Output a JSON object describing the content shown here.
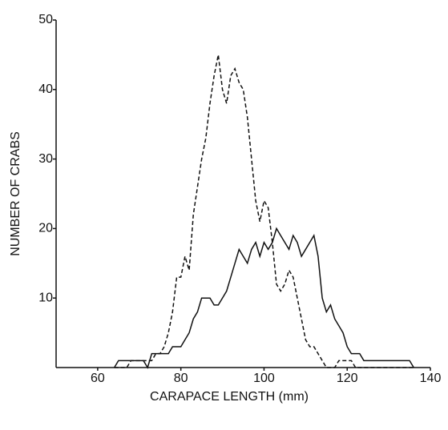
{
  "chart_data": {
    "type": "line",
    "xlabel": "CARAPACE LENGTH (mm)",
    "ylabel": "NUMBER OF CRABS",
    "x": [
      64,
      65,
      66,
      67,
      68,
      69,
      70,
      71,
      72,
      73,
      74,
      75,
      76,
      77,
      78,
      79,
      80,
      81,
      82,
      83,
      84,
      85,
      86,
      87,
      88,
      89,
      90,
      91,
      92,
      93,
      94,
      95,
      96,
      97,
      98,
      99,
      100,
      101,
      102,
      103,
      104,
      105,
      106,
      107,
      108,
      109,
      110,
      111,
      112,
      113,
      114,
      115,
      116,
      117,
      118,
      119,
      120,
      121,
      122,
      123,
      124,
      125,
      126,
      127,
      128,
      129,
      130,
      131,
      132,
      133,
      134,
      135,
      136
    ],
    "series": [
      {
        "color": "#111111",
        "style": "solid",
        "values": [
          0,
          1,
          1,
          1,
          1,
          1,
          1,
          1,
          0,
          2,
          2,
          2,
          2,
          2,
          3,
          3,
          3,
          4,
          5,
          7,
          8,
          10,
          10,
          10,
          9,
          9,
          10,
          11,
          13,
          15,
          17,
          16,
          15,
          17,
          18,
          16,
          18,
          17,
          18,
          20,
          19,
          18,
          17,
          19,
          18,
          16,
          17,
          18,
          19,
          16,
          10,
          8,
          9,
          7,
          6,
          5,
          3,
          2,
          2,
          2,
          1,
          1,
          1,
          1,
          1,
          1,
          1,
          1,
          1,
          1,
          1,
          1,
          0
        ]
      },
      {
        "color": "#111111",
        "style": "dashed",
        "values": [
          0,
          0,
          0,
          0,
          1,
          1,
          1,
          1,
          1,
          1,
          2,
          2,
          3,
          5,
          8,
          13,
          13,
          16,
          14,
          22,
          26,
          30,
          33,
          38,
          42,
          45,
          40,
          38,
          42,
          43,
          41,
          40,
          36,
          30,
          24,
          21,
          24,
          23,
          18,
          12,
          11,
          12,
          14,
          13,
          10,
          7,
          4,
          3,
          3,
          2,
          1,
          0,
          0,
          0,
          1,
          1,
          1,
          1,
          0,
          0,
          0,
          0,
          0,
          0,
          0,
          0,
          0,
          0,
          0,
          0,
          0,
          0,
          0
        ]
      }
    ],
    "xlim": [
      50,
      140
    ],
    "xticks": [
      60,
      80,
      100,
      120,
      140
    ],
    "ylim": [
      0,
      50
    ],
    "yticks": [
      10,
      20,
      30,
      40,
      50
    ]
  }
}
